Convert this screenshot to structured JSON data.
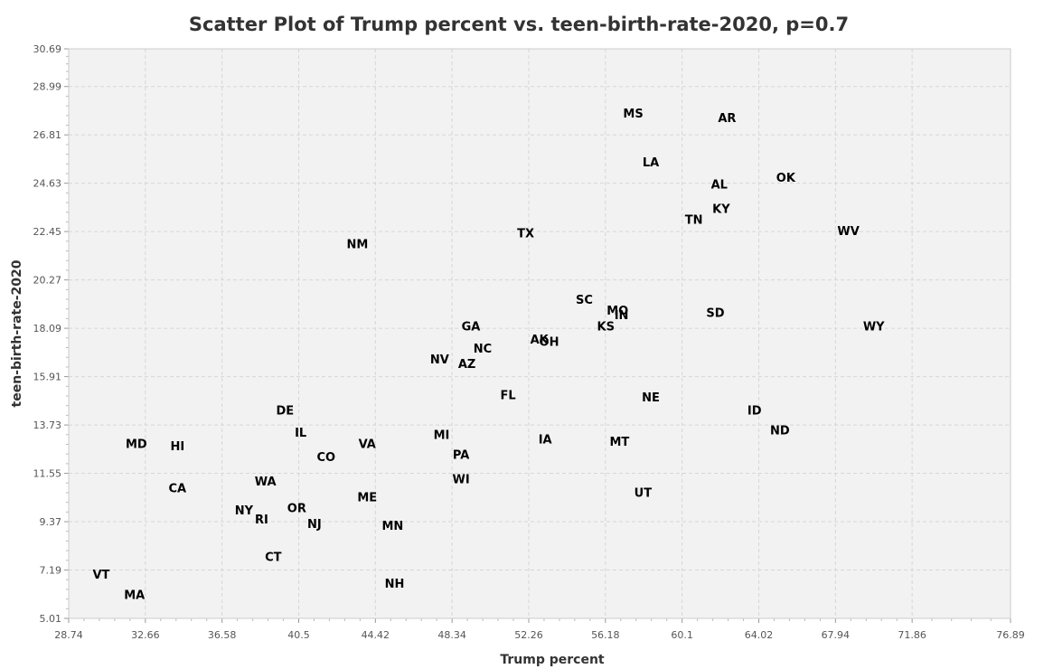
{
  "chart_data": {
    "type": "scatter",
    "title": "Scatter Plot of Trump percent vs. teen-birth-rate-2020, p=0.7",
    "xlabel": "Trump percent",
    "ylabel": "teen-birth-rate-2020",
    "xlim": [
      28.74,
      76.89
    ],
    "ylim": [
      5.01,
      30.69
    ],
    "x_ticks": [
      "28.74",
      "32.66",
      "36.58",
      "40.5",
      "44.42",
      "48.34",
      "52.26",
      "56.18",
      "60.1",
      "64.02",
      "67.94",
      "71.86",
      "76.89"
    ],
    "y_ticks": [
      "5.01",
      "7.19",
      "9.37",
      "11.55",
      "13.73",
      "15.91",
      "18.09",
      "20.27",
      "22.45",
      "24.63",
      "26.81",
      "28.99",
      "30.69"
    ],
    "grid": true,
    "points": [
      {
        "label": "MS",
        "x": 57.6,
        "y": 27.8
      },
      {
        "label": "AR",
        "x": 62.4,
        "y": 27.6
      },
      {
        "label": "LA",
        "x": 58.5,
        "y": 25.6
      },
      {
        "label": "OK",
        "x": 65.4,
        "y": 24.9
      },
      {
        "label": "AL",
        "x": 62.0,
        "y": 24.6
      },
      {
        "label": "KY",
        "x": 62.1,
        "y": 23.5
      },
      {
        "label": "TN",
        "x": 60.7,
        "y": 23.0
      },
      {
        "label": "WV",
        "x": 68.6,
        "y": 22.5
      },
      {
        "label": "TX",
        "x": 52.1,
        "y": 22.4
      },
      {
        "label": "NM",
        "x": 43.5,
        "y": 21.9
      },
      {
        "label": "SC",
        "x": 55.1,
        "y": 19.4
      },
      {
        "label": "MO",
        "x": 56.8,
        "y": 18.9
      },
      {
        "label": "IN",
        "x": 57.0,
        "y": 18.7
      },
      {
        "label": "SD",
        "x": 61.8,
        "y": 18.8
      },
      {
        "label": "KS",
        "x": 56.2,
        "y": 18.2
      },
      {
        "label": "WY",
        "x": 69.9,
        "y": 18.2
      },
      {
        "label": "GA",
        "x": 49.3,
        "y": 18.2
      },
      {
        "label": "AK",
        "x": 52.8,
        "y": 17.6
      },
      {
        "label": "OH",
        "x": 53.3,
        "y": 17.5
      },
      {
        "label": "NC",
        "x": 49.9,
        "y": 17.2
      },
      {
        "label": "NV",
        "x": 47.7,
        "y": 16.7
      },
      {
        "label": "AZ",
        "x": 49.1,
        "y": 16.5
      },
      {
        "label": "FL",
        "x": 51.2,
        "y": 15.1
      },
      {
        "label": "NE",
        "x": 58.5,
        "y": 15.0
      },
      {
        "label": "DE",
        "x": 39.8,
        "y": 14.4
      },
      {
        "label": "ID",
        "x": 63.8,
        "y": 14.4
      },
      {
        "label": "ND",
        "x": 65.1,
        "y": 13.5
      },
      {
        "label": "IL",
        "x": 40.6,
        "y": 13.4
      },
      {
        "label": "MI",
        "x": 47.8,
        "y": 13.3
      },
      {
        "label": "IA",
        "x": 53.1,
        "y": 13.1
      },
      {
        "label": "MT",
        "x": 56.9,
        "y": 13.0
      },
      {
        "label": "MD",
        "x": 32.2,
        "y": 12.9
      },
      {
        "label": "HI",
        "x": 34.3,
        "y": 12.8
      },
      {
        "label": "VA",
        "x": 44.0,
        "y": 12.9
      },
      {
        "label": "CO",
        "x": 41.9,
        "y": 12.3
      },
      {
        "label": "PA",
        "x": 48.8,
        "y": 12.4
      },
      {
        "label": "WI",
        "x": 48.8,
        "y": 11.3
      },
      {
        "label": "WA",
        "x": 38.8,
        "y": 11.2
      },
      {
        "label": "CA",
        "x": 34.3,
        "y": 10.9
      },
      {
        "label": "UT",
        "x": 58.1,
        "y": 10.7
      },
      {
        "label": "ME",
        "x": 44.0,
        "y": 10.5
      },
      {
        "label": "OR",
        "x": 40.4,
        "y": 10.0
      },
      {
        "label": "NY",
        "x": 37.7,
        "y": 9.9
      },
      {
        "label": "RI",
        "x": 38.6,
        "y": 9.5
      },
      {
        "label": "NJ",
        "x": 41.3,
        "y": 9.3
      },
      {
        "label": "MN",
        "x": 45.3,
        "y": 9.2
      },
      {
        "label": "CT",
        "x": 39.2,
        "y": 7.8
      },
      {
        "label": "VT",
        "x": 30.4,
        "y": 7.0
      },
      {
        "label": "NH",
        "x": 45.4,
        "y": 6.6
      },
      {
        "label": "MA",
        "x": 32.1,
        "y": 6.1
      }
    ]
  }
}
